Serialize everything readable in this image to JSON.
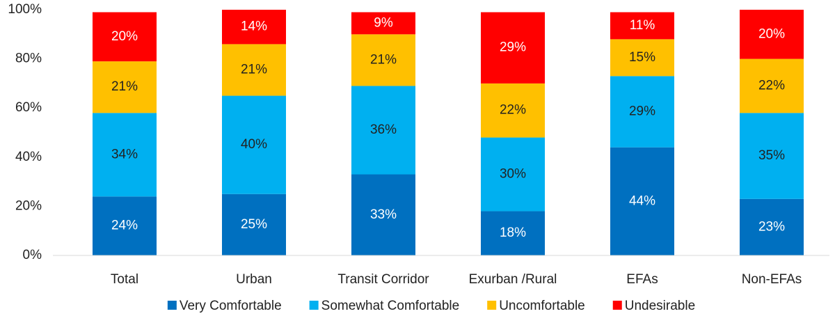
{
  "chart_data": {
    "type": "stacked_bar",
    "categories": [
      "Total",
      "Urban",
      "Transit Corridor",
      "Exurban /Rural",
      "EFAs",
      "Non-EFAs"
    ],
    "series": [
      {
        "name": "Very Comfortable",
        "color": "#0070c0",
        "values": [
          24,
          25,
          33,
          18,
          44,
          23
        ],
        "value_labels": [
          "24%",
          "25%",
          "33%",
          "18%",
          "44%",
          "23%"
        ]
      },
      {
        "name": "Somewhat Comfortable",
        "color": "#00b0f0",
        "values": [
          34,
          40,
          36,
          30,
          29,
          35
        ],
        "value_labels": [
          "34%",
          "40%",
          "36%",
          "30%",
          "29%",
          "35%"
        ]
      },
      {
        "name": "Uncomfortable",
        "color": "#ffc000",
        "values": [
          21,
          21,
          21,
          22,
          15,
          22
        ],
        "value_labels": [
          "21%",
          "21%",
          "21%",
          "22%",
          "15%",
          "22%"
        ]
      },
      {
        "name": "Undesirable",
        "color": "#ff0000",
        "values": [
          20,
          14,
          9,
          29,
          11,
          20
        ],
        "value_labels": [
          "20%",
          "14%",
          "9%",
          "29%",
          "11%",
          "20%"
        ]
      }
    ],
    "ylim": [
      0,
      100
    ],
    "yticks": [
      {
        "value": 0,
        "label": "0%"
      },
      {
        "value": 20,
        "label": "20%"
      },
      {
        "value": 40,
        "label": "40%"
      },
      {
        "value": 60,
        "label": "60%"
      },
      {
        "value": 80,
        "label": "80%"
      },
      {
        "value": 100,
        "label": "100%"
      }
    ],
    "legend": "bottom"
  }
}
